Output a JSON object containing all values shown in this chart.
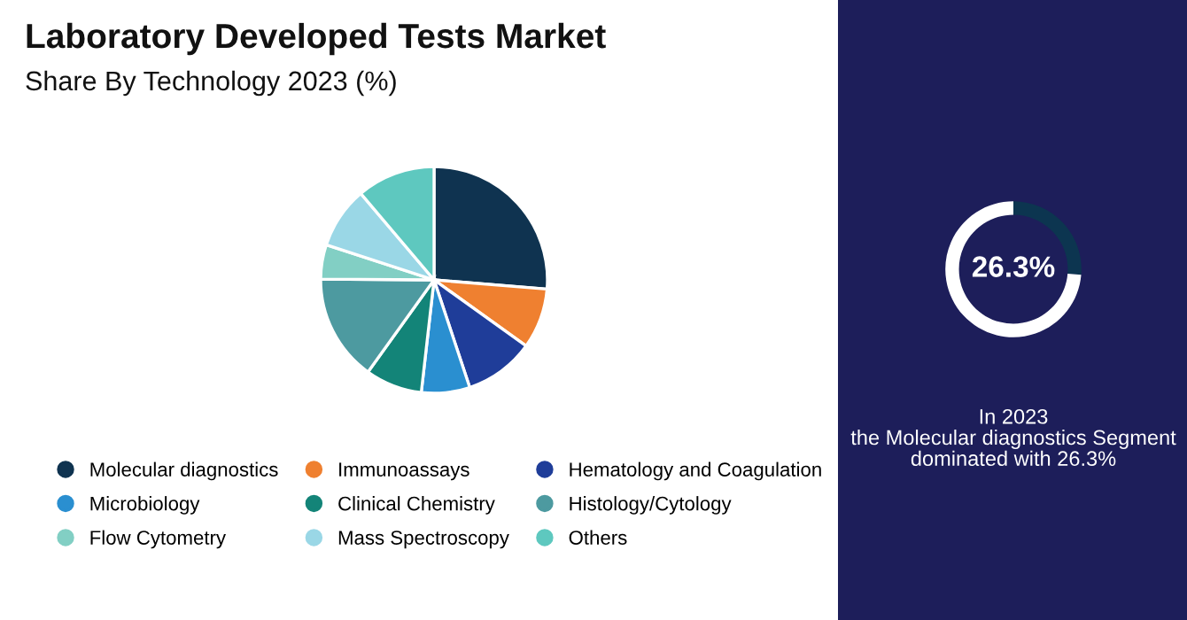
{
  "chart_data": [
    {
      "type": "pie",
      "title": "Laboratory Developed Tests Market",
      "subtitle": "Share By Technology 2023 (%)",
      "categories": [
        "Molecular diagnostics",
        "Immunoassays",
        "Hematology and Coagulation",
        "Microbiology",
        "Clinical Chemistry",
        "Histology/Cytology",
        "Flow Cytometry",
        "Mass Spectroscopy",
        "Others"
      ],
      "values": [
        26.3,
        8.6,
        10,
        6.9,
        8.1,
        15.2,
        4.9,
        8.8,
        11.2
      ],
      "colors": [
        "#0f3350",
        "#ef8030",
        "#1f3d99",
        "#2a8fd0",
        "#138478",
        "#4d9aa0",
        "#82cfc4",
        "#9ad7e6",
        "#5ec8bf"
      ],
      "legend": "bottom"
    },
    {
      "type": "donut",
      "categories": [
        null,
        null
      ],
      "values": [
        26.3,
        73.7
      ],
      "colors": [
        "#0c3550",
        "#ffffff"
      ],
      "value_labels": [
        "26.3%",
        null
      ],
      "annotations": [
        "In 2023\nthe Molecular diagnostics Segment\ndominated with 26.3%"
      ]
    }
  ]
}
